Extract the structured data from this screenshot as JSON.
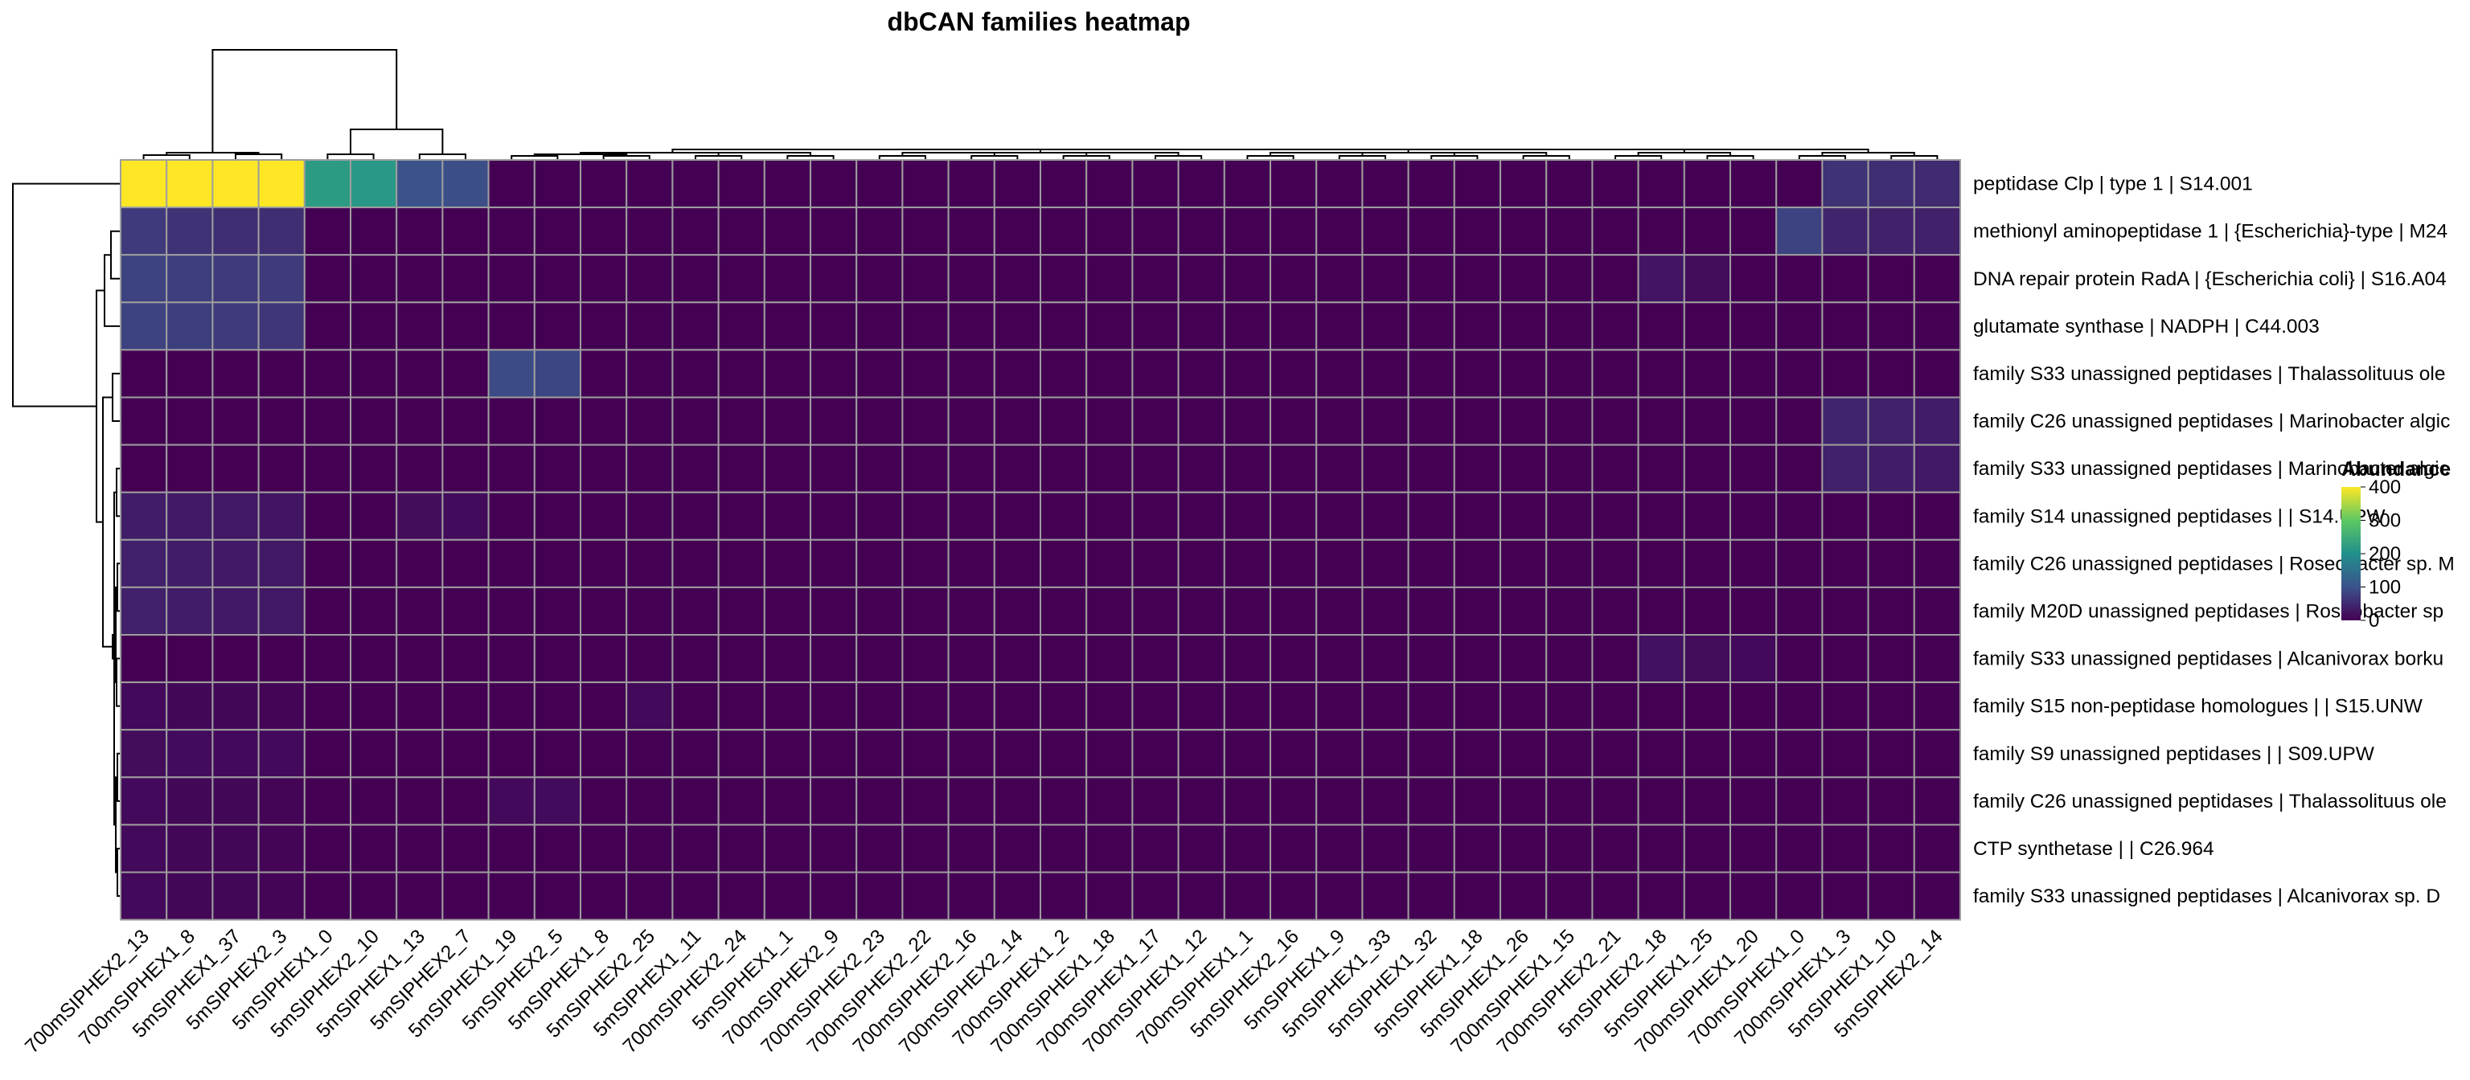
{
  "chart_data": {
    "type": "heatmap",
    "title": "dbCAN families heatmap",
    "legend": {
      "title": "Abundance",
      "ticks": [
        0,
        100,
        200,
        300,
        400
      ],
      "position": "right"
    },
    "colors": {
      "low": "#440154",
      "mid": "#21908c",
      "high": "#fde725",
      "grid": "#9e9e9e"
    },
    "scale": {
      "min": 0,
      "max": 400
    },
    "columns": [
      "700mSIPHEX2_13",
      "700mSIPHEX1_8",
      "5mSIPHEX1_37",
      "5mSIPHEX2_3",
      "5mSIPHEX1_0",
      "5mSIPHEX2_10",
      "5mSIPHEX1_13",
      "5mSIPHEX2_7",
      "5mSIPHEX1_19",
      "5mSIPHEX2_5",
      "5mSIPHEX1_8",
      "5mSIPHEX2_25",
      "5mSIPHEX1_11",
      "700mSIPHEX2_24",
      "5mSIPHEX1_1",
      "700mSIPHEX2_9",
      "700mSIPHEX2_23",
      "700mSIPHEX2_22",
      "700mSIPHEX2_16",
      "700mSIPHEX2_14",
      "700mSIPHEX1_2",
      "700mSIPHEX1_18",
      "700mSIPHEX1_17",
      "700mSIPHEX1_12",
      "700mSIPHEX1_1",
      "5mSIPHEX2_16",
      "5mSIPHEX1_9",
      "5mSIPHEX1_33",
      "5mSIPHEX1_32",
      "5mSIPHEX1_18",
      "5mSIPHEX1_26",
      "700mSIPHEX1_15",
      "700mSIPHEX2_21",
      "5mSIPHEX2_18",
      "5mSIPHEX1_25",
      "700mSIPHEX1_20",
      "700mSIPHEX1_0",
      "700mSIPHEX1_3",
      "5mSIPHEX1_10",
      "5mSIPHEX2_14"
    ],
    "rows": [
      "peptidase Clp | type 1 | S14.001",
      "methionyl aminopeptidase 1 | {Escherichia}-type | M24",
      "DNA repair protein RadA | {Escherichia coli} | S16.A04",
      "glutamate synthase | NADPH | C44.003",
      "family S33 unassigned peptidases | Thalassolituus ole",
      "family C26 unassigned peptidases | Marinobacter algic",
      "family S33 unassigned peptidases | Marinobacter algic",
      "family S14 unassigned peptidases |  | S14.UPW",
      "family C26 unassigned peptidases | Roseobacter sp. M",
      "family M20D unassigned peptidases | Roseobacter sp",
      "family S33 unassigned peptidases | Alcanivorax borku",
      "family S15 non-peptidase homologues |  | S15.UNW",
      "family S9 unassigned peptidases |  | S09.UPW",
      "family C26 unassigned peptidases | Thalassolituus ole",
      "CTP synthetase |  | C26.964",
      "family S33 unassigned peptidases | Alcanivorax sp. D"
    ],
    "values": [
      [
        430,
        420,
        410,
        400,
        220,
        215,
        100,
        95,
        0,
        0,
        0,
        0,
        0,
        0,
        0,
        0,
        0,
        0,
        0,
        0,
        0,
        0,
        0,
        0,
        0,
        0,
        0,
        0,
        0,
        0,
        0,
        0,
        0,
        0,
        0,
        0,
        0,
        60,
        55,
        50
      ],
      [
        70,
        60,
        55,
        55,
        0,
        0,
        0,
        0,
        0,
        0,
        0,
        0,
        0,
        0,
        0,
        0,
        0,
        0,
        0,
        0,
        0,
        0,
        0,
        0,
        0,
        0,
        0,
        0,
        0,
        0,
        0,
        0,
        0,
        0,
        0,
        0,
        80,
        45,
        40,
        40
      ],
      [
        80,
        75,
        70,
        70,
        0,
        0,
        0,
        0,
        0,
        0,
        0,
        0,
        0,
        0,
        0,
        0,
        0,
        0,
        0,
        0,
        0,
        0,
        0,
        0,
        0,
        0,
        0,
        0,
        0,
        0,
        0,
        0,
        0,
        25,
        15,
        0,
        0,
        0,
        0,
        0
      ],
      [
        80,
        75,
        70,
        65,
        0,
        0,
        0,
        0,
        0,
        0,
        0,
        0,
        0,
        0,
        0,
        0,
        0,
        0,
        0,
        0,
        0,
        0,
        0,
        0,
        0,
        0,
        0,
        0,
        0,
        0,
        0,
        0,
        0,
        0,
        0,
        0,
        0,
        0,
        0,
        0
      ],
      [
        0,
        0,
        0,
        0,
        0,
        0,
        0,
        0,
        90,
        85,
        0,
        0,
        0,
        0,
        0,
        0,
        0,
        0,
        0,
        0,
        0,
        0,
        0,
        0,
        0,
        0,
        0,
        0,
        0,
        0,
        0,
        0,
        0,
        0,
        0,
        0,
        0,
        0,
        0,
        0
      ],
      [
        0,
        0,
        0,
        0,
        0,
        0,
        0,
        0,
        0,
        0,
        0,
        0,
        0,
        0,
        0,
        0,
        0,
        0,
        0,
        0,
        0,
        0,
        0,
        0,
        0,
        0,
        0,
        0,
        0,
        0,
        0,
        0,
        0,
        0,
        0,
        0,
        0,
        45,
        40,
        35
      ],
      [
        0,
        0,
        0,
        0,
        0,
        0,
        0,
        0,
        0,
        0,
        0,
        0,
        0,
        0,
        0,
        0,
        0,
        0,
        0,
        0,
        0,
        0,
        0,
        0,
        0,
        0,
        0,
        0,
        0,
        0,
        0,
        0,
        0,
        0,
        0,
        0,
        0,
        40,
        35,
        30
      ],
      [
        35,
        30,
        28,
        25,
        0,
        0,
        15,
        12,
        0,
        0,
        0,
        0,
        0,
        0,
        0,
        0,
        0,
        0,
        0,
        0,
        0,
        0,
        0,
        0,
        0,
        0,
        0,
        0,
        0,
        0,
        0,
        0,
        0,
        0,
        0,
        0,
        0,
        0,
        0,
        0
      ],
      [
        40,
        35,
        30,
        28,
        0,
        0,
        0,
        0,
        0,
        0,
        0,
        0,
        0,
        0,
        0,
        0,
        0,
        0,
        0,
        0,
        0,
        0,
        0,
        0,
        0,
        0,
        0,
        0,
        0,
        0,
        0,
        0,
        0,
        0,
        0,
        0,
        0,
        0,
        0,
        0
      ],
      [
        40,
        35,
        30,
        28,
        0,
        0,
        0,
        0,
        0,
        0,
        0,
        0,
        0,
        0,
        0,
        0,
        0,
        0,
        0,
        0,
        0,
        0,
        0,
        0,
        0,
        0,
        0,
        0,
        0,
        0,
        0,
        0,
        0,
        0,
        0,
        0,
        0,
        0,
        0,
        0
      ],
      [
        0,
        0,
        0,
        0,
        0,
        0,
        0,
        0,
        0,
        0,
        0,
        0,
        0,
        0,
        0,
        0,
        0,
        0,
        0,
        0,
        0,
        0,
        0,
        0,
        0,
        0,
        0,
        0,
        0,
        0,
        0,
        0,
        0,
        20,
        15,
        10,
        0,
        0,
        0,
        0
      ],
      [
        10,
        8,
        8,
        5,
        0,
        0,
        0,
        0,
        0,
        0,
        0,
        10,
        0,
        0,
        0,
        0,
        0,
        0,
        0,
        0,
        0,
        0,
        0,
        0,
        0,
        0,
        0,
        0,
        0,
        0,
        0,
        0,
        0,
        0,
        0,
        0,
        0,
        0,
        0,
        0
      ],
      [
        15,
        12,
        10,
        10,
        0,
        0,
        0,
        0,
        0,
        0,
        0,
        0,
        0,
        0,
        0,
        0,
        0,
        0,
        0,
        0,
        0,
        0,
        0,
        0,
        0,
        0,
        0,
        0,
        0,
        0,
        0,
        0,
        0,
        0,
        0,
        0,
        0,
        0,
        0,
        0
      ],
      [
        10,
        8,
        8,
        5,
        0,
        0,
        0,
        0,
        10,
        12,
        0,
        0,
        0,
        0,
        0,
        0,
        0,
        0,
        0,
        0,
        0,
        0,
        0,
        0,
        0,
        0,
        0,
        0,
        0,
        0,
        0,
        0,
        0,
        0,
        0,
        0,
        0,
        0,
        0,
        0
      ],
      [
        10,
        8,
        8,
        5,
        0,
        0,
        0,
        0,
        0,
        0,
        0,
        0,
        0,
        0,
        0,
        0,
        0,
        0,
        0,
        0,
        0,
        0,
        0,
        0,
        0,
        0,
        0,
        0,
        0,
        0,
        0,
        0,
        0,
        0,
        0,
        0,
        0,
        0,
        0,
        0
      ],
      [
        10,
        8,
        8,
        5,
        0,
        0,
        0,
        0,
        0,
        0,
        0,
        0,
        0,
        0,
        0,
        0,
        0,
        0,
        0,
        0,
        0,
        0,
        0,
        0,
        0,
        0,
        0,
        0,
        0,
        0,
        0,
        0,
        0,
        0,
        0,
        0,
        0,
        0,
        0,
        0
      ]
    ],
    "grid": true
  }
}
